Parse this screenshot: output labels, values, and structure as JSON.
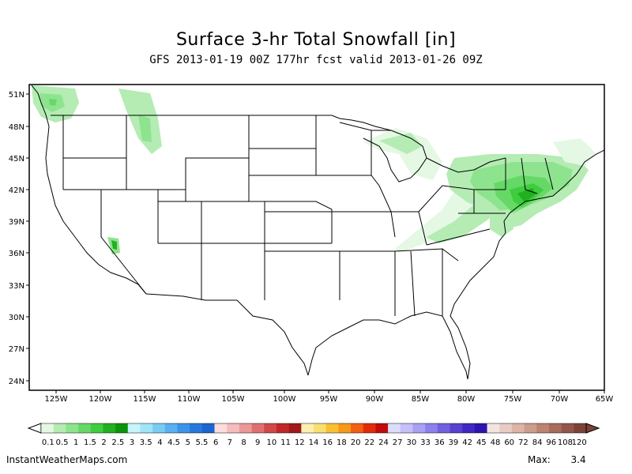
{
  "title": "Surface 3-hr Total Snowfall [in]",
  "subtitle": "GFS 2013-01-19 00Z 177hr fcst valid 2013-01-26 09Z",
  "map": {
    "lat_labels": [
      "51N",
      "48N",
      "45N",
      "42N",
      "39N",
      "36N",
      "33N",
      "30N",
      "27N",
      "24N"
    ],
    "lon_labels": [
      "125W",
      "120W",
      "115W",
      "110W",
      "105W",
      "100W",
      "95W",
      "90W",
      "85W",
      "80W",
      "75W",
      "70W",
      "65W"
    ]
  },
  "legend": {
    "labels": [
      "0.1",
      "0.5",
      "1",
      "1.5",
      "2",
      "2.5",
      "3",
      "3.5",
      "4",
      "4.5",
      "5",
      "5.5",
      "6",
      "7",
      "8",
      "9",
      "10",
      "11",
      "12",
      "14",
      "16",
      "18",
      "20",
      "22",
      "24",
      "27",
      "30",
      "33",
      "36",
      "39",
      "42",
      "45",
      "48",
      "60",
      "72",
      "84",
      "96",
      "108",
      "120"
    ],
    "colors": [
      "#e4f8e4",
      "#b4ecb4",
      "#8ee48e",
      "#66d866",
      "#3fcc3f",
      "#20b020",
      "#0a940a",
      "#c8f4fc",
      "#a0e4f8",
      "#78ccf4",
      "#58b0f0",
      "#3c94e8",
      "#2878dc",
      "#1c64d0",
      "#fcdcdc",
      "#f4bcbc",
      "#ec9898",
      "#e07070",
      "#d04848",
      "#c02828",
      "#a01818",
      "#fcf0b0",
      "#f8e070",
      "#f8c030",
      "#f89818",
      "#f06010",
      "#e02c0c",
      "#c00c0c",
      "#dcdcfc",
      "#c4c0f8",
      "#a8a0f4",
      "#8c80ec",
      "#7060e0",
      "#5840d0",
      "#4028c0",
      "#2c14b0",
      "#f4e4e0",
      "#e8ccc4",
      "#dcb4a8",
      "#cc9c8c",
      "#bc8470",
      "#a86c5c",
      "#94564a",
      "#7c4238"
    ]
  },
  "credit": "InstantWeatherMaps.com",
  "max_label": "Max:",
  "max_value": "3.4"
}
